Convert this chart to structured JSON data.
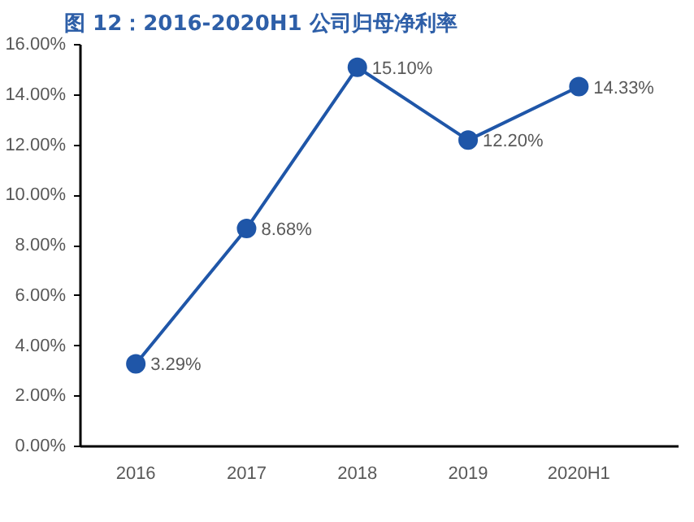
{
  "chart_data": {
    "type": "line",
    "title": "图 12：2016-2020H1 公司归母净利率",
    "categories": [
      "2016",
      "2017",
      "2018",
      "2019",
      "2020H1"
    ],
    "series": [
      {
        "color": "#1f56a8",
        "values": [
          3.29,
          8.68,
          15.1,
          12.2,
          14.33
        ],
        "value_labels": [
          "3.29%",
          "8.68%",
          "15.10%",
          "12.20%",
          "14.33%"
        ]
      }
    ],
    "ylim": [
      0,
      16
    ],
    "yticks": [
      {
        "value": 0,
        "label": "0.00%"
      },
      {
        "value": 2,
        "label": "2.00%"
      },
      {
        "value": 4,
        "label": "4.00%"
      },
      {
        "value": 6,
        "label": "6.00%"
      },
      {
        "value": 8,
        "label": "8.00%"
      },
      {
        "value": 10,
        "label": "10.00%"
      },
      {
        "value": 12,
        "label": "12.00%"
      },
      {
        "value": 14,
        "label": "14.00%"
      },
      {
        "value": 16,
        "label": "16.00%"
      }
    ],
    "grid": false,
    "marker": "circle",
    "line_style": "solid"
  }
}
